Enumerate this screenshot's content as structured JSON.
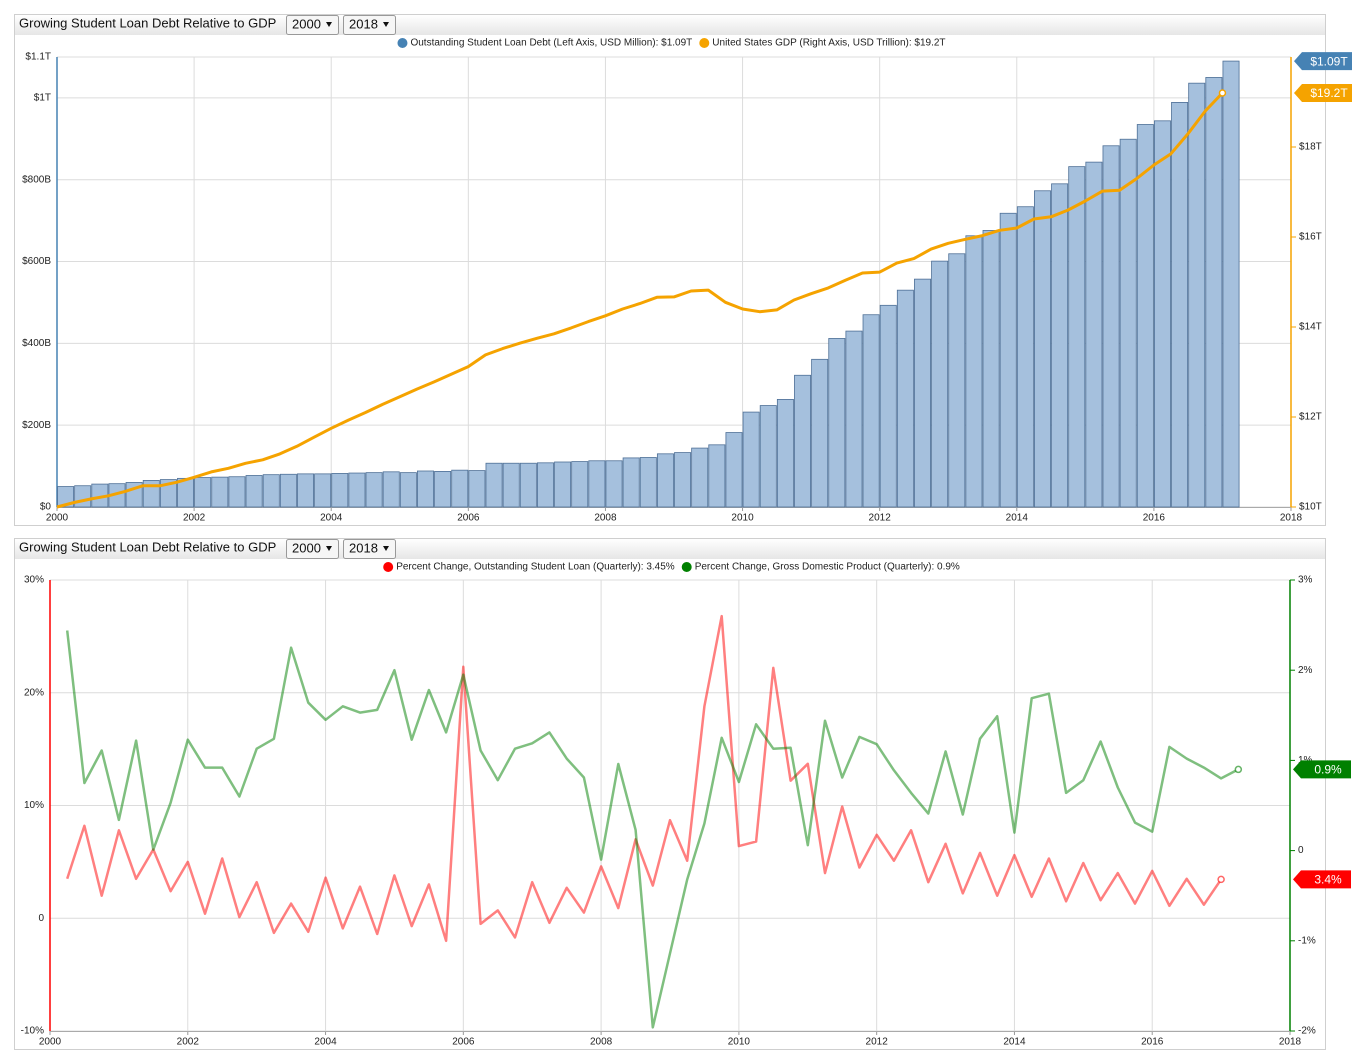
{
  "chart_data": [
    {
      "type": "combo",
      "title": "Growing Student Loan Debt Relative to GDP",
      "range_selectors": [
        "2000",
        "2018"
      ],
      "xlim": [
        2000,
        2018
      ],
      "xticks": [
        2000,
        2002,
        2004,
        2006,
        2008,
        2010,
        2012,
        2014,
        2016,
        2018
      ],
      "ylim": [
        0,
        1100
      ],
      "yticks": [
        {
          "value": 0,
          "label": "$0"
        },
        {
          "value": 200,
          "label": "$200B"
        },
        {
          "value": 400,
          "label": "$400B"
        },
        {
          "value": 600,
          "label": "$600B"
        },
        {
          "value": 800,
          "label": "$800B"
        },
        {
          "value": 1000,
          "label": "$1T"
        },
        {
          "value": 1100,
          "label": "$1.1T"
        }
      ],
      "y2lim": [
        10,
        20
      ],
      "y2ticks": [
        {
          "value": 10,
          "label": "$10T"
        },
        {
          "value": 12,
          "label": "$12T"
        },
        {
          "value": 14,
          "label": "$14T"
        },
        {
          "value": 16,
          "label": "$16T"
        },
        {
          "value": 18,
          "label": "$18T"
        }
      ],
      "grid": true,
      "x": [
        2000,
        2000.25,
        2000.5,
        2000.75,
        2001,
        2001.25,
        2001.5,
        2001.75,
        2002,
        2002.25,
        2002.5,
        2002.75,
        2003,
        2003.25,
        2003.5,
        2003.75,
        2004,
        2004.25,
        2004.5,
        2004.75,
        2005,
        2005.25,
        2005.5,
        2005.75,
        2006,
        2006.25,
        2006.5,
        2006.75,
        2007,
        2007.25,
        2007.5,
        2007.75,
        2008,
        2008.25,
        2008.5,
        2008.75,
        2009,
        2009.25,
        2009.5,
        2009.75,
        2010,
        2010.25,
        2010.5,
        2010.75,
        2011,
        2011.25,
        2011.5,
        2011.75,
        2012,
        2012.25,
        2012.5,
        2012.75,
        2013,
        2013.25,
        2013.5,
        2013.75,
        2014,
        2014.25,
        2014.5,
        2014.75,
        2015,
        2015.25,
        2015.5,
        2015.75,
        2016,
        2016.25,
        2016.5,
        2016.75,
        2017
      ],
      "series": [
        {
          "name": "Outstanding Student Loan Debt (Left Axis, USD Million): $1.09T",
          "type": "bar",
          "color": "#4682b4",
          "end_label": "$1.09T",
          "values": [
            50,
            52,
            56,
            57,
            60,
            65,
            67,
            70,
            72,
            73,
            74,
            77,
            79,
            80,
            81,
            81,
            82,
            83,
            84,
            86,
            84,
            88,
            87,
            90,
            89,
            107,
            107,
            107,
            108,
            110,
            111,
            113,
            113,
            120,
            121,
            130,
            133,
            144,
            152,
            182,
            232,
            248,
            263,
            322,
            361,
            412,
            430,
            470,
            493,
            530,
            557,
            601,
            619,
            663,
            676,
            718,
            734,
            773,
            790,
            832,
            843,
            883,
            899,
            935,
            944,
            989,
            1036,
            1050,
            1090
          ]
        },
        {
          "name": "United States GDP (Right Axis, USD Trillion): $19.2T",
          "type": "line",
          "axis": "y2",
          "color": "#f5a300",
          "end_label": "$19.2T",
          "values": [
            10.0,
            10.1,
            10.18,
            10.25,
            10.35,
            10.47,
            10.47,
            10.55,
            10.66,
            10.78,
            10.86,
            10.97,
            11.05,
            11.18,
            11.35,
            11.55,
            11.75,
            11.93,
            12.1,
            12.28,
            12.45,
            12.62,
            12.78,
            12.95,
            13.12,
            13.38,
            13.52,
            13.64,
            13.75,
            13.85,
            13.98,
            14.12,
            14.25,
            14.4,
            14.52,
            14.66,
            14.67,
            14.8,
            14.82,
            14.55,
            14.4,
            14.34,
            14.38,
            14.6,
            14.74,
            14.87,
            15.04,
            15.2,
            15.22,
            15.42,
            15.52,
            15.73,
            15.86,
            15.95,
            16.03,
            16.15,
            16.2,
            16.4,
            16.45,
            16.6,
            16.8,
            17.02,
            17.04,
            17.3,
            17.6,
            17.85,
            18.3,
            18.8,
            19.2
          ]
        }
      ]
    },
    {
      "type": "line",
      "title": "Growing Student Loan Debt Relative to GDP",
      "range_selectors": [
        "2000",
        "2018"
      ],
      "xlim": [
        2000,
        2018
      ],
      "xticks": [
        2000,
        2002,
        2004,
        2006,
        2008,
        2010,
        2012,
        2014,
        2016,
        2018
      ],
      "ylim": [
        -10,
        30
      ],
      "yticks": [
        {
          "value": -10,
          "label": "-10%"
        },
        0,
        {
          "value": 10,
          "label": "10%"
        },
        {
          "value": 20,
          "label": "20%"
        },
        {
          "value": 30,
          "label": "30%"
        }
      ],
      "y2lim": [
        -2,
        3
      ],
      "y2ticks": [
        {
          "value": -2,
          "label": "-2%"
        },
        {
          "value": -1,
          "label": "-1%"
        },
        0,
        {
          "value": 1,
          "label": "1%"
        },
        {
          "value": 2,
          "label": "2%"
        },
        {
          "value": 3,
          "label": "3%"
        }
      ],
      "grid": true,
      "series": [
        {
          "name": "Percent Change, Outstanding Student Loan (Quarterly): 3.45%",
          "color": "#ff0000",
          "end_label": "3.4%",
          "x": [
            2000.25,
            2000.5,
            2000.75,
            2001,
            2001.25,
            2001.5,
            2001.75,
            2002,
            2002.25,
            2002.5,
            2002.75,
            2003,
            2003.25,
            2003.5,
            2003.75,
            2004,
            2004.25,
            2004.5,
            2004.75,
            2005,
            2005.25,
            2005.5,
            2005.75,
            2006,
            2006.25,
            2006.5,
            2006.75,
            2007,
            2007.25,
            2007.5,
            2007.75,
            2008,
            2008.25,
            2008.5,
            2008.75,
            2009,
            2009.25,
            2009.5,
            2009.75,
            2010,
            2010.25,
            2010.5,
            2010.75,
            2011,
            2011.25,
            2011.5,
            2011.75,
            2012,
            2012.25,
            2012.5,
            2012.75,
            2013,
            2013.25,
            2013.5,
            2013.75,
            2014,
            2014.25,
            2014.5,
            2014.75,
            2015,
            2015.25,
            2015.5,
            2015.75,
            2016,
            2016.25,
            2016.5,
            2016.75,
            2017
          ],
          "values": [
            3.5,
            8.2,
            2.0,
            7.8,
            3.5,
            6.1,
            2.4,
            5.0,
            0.4,
            5.3,
            0.1,
            3.2,
            -1.3,
            1.3,
            -1.2,
            3.6,
            -0.9,
            2.8,
            -1.4,
            3.8,
            -0.7,
            3.0,
            -2.0,
            22.3,
            -0.5,
            0.7,
            -1.7,
            3.2,
            -0.4,
            2.7,
            0.5,
            4.6,
            0.9,
            7.0,
            2.9,
            8.7,
            5.1,
            18.8,
            26.8,
            6.4,
            6.8,
            22.2,
            12.2,
            13.7,
            4.0,
            9.9,
            4.5,
            7.4,
            5.1,
            7.8,
            3.2,
            6.6,
            2.2,
            5.8,
            2.0,
            5.6,
            1.9,
            5.3,
            1.5,
            4.9,
            1.6,
            4.0,
            1.3,
            4.2,
            1.1,
            3.5,
            1.2,
            3.45
          ]
        },
        {
          "name": "Percent Change, Gross Domestic Product (Quarterly): 0.9%",
          "axis": "y2",
          "color": "#008000",
          "end_label": "0.9%",
          "x": [
            2000.25,
            2000.5,
            2000.75,
            2001,
            2001.25,
            2001.5,
            2001.75,
            2002,
            2002.25,
            2002.5,
            2002.75,
            2003,
            2003.25,
            2003.5,
            2003.75,
            2004,
            2004.25,
            2004.5,
            2004.75,
            2005,
            2005.25,
            2005.5,
            2005.75,
            2006,
            2006.25,
            2006.5,
            2006.75,
            2007,
            2007.25,
            2007.5,
            2007.75,
            2008,
            2008.25,
            2008.5,
            2008.75,
            2009,
            2009.25,
            2009.5,
            2009.75,
            2010,
            2010.25,
            2010.5,
            2010.75,
            2011,
            2011.25,
            2011.5,
            2011.75,
            2012,
            2012.25,
            2012.5,
            2012.75,
            2013,
            2013.25,
            2013.5,
            2013.75,
            2014,
            2014.25,
            2014.5,
            2014.75,
            2015,
            2015.25,
            2015.5,
            2015.75,
            2016,
            2016.25,
            2016.5,
            2016.75,
            2017,
            2017.25
          ],
          "values": [
            2.44,
            0.75,
            1.11,
            0.34,
            1.22,
            0.01,
            0.53,
            1.23,
            0.92,
            0.92,
            0.6,
            1.13,
            1.24,
            2.25,
            1.64,
            1.45,
            1.6,
            1.53,
            1.56,
            2.0,
            1.23,
            1.78,
            1.31,
            1.95,
            1.11,
            0.78,
            1.13,
            1.19,
            1.31,
            1.02,
            0.81,
            -0.1,
            0.96,
            0.23,
            -1.96,
            -1.14,
            -0.32,
            0.3,
            1.25,
            0.76,
            1.4,
            1.13,
            1.14,
            0.06,
            1.44,
            0.81,
            1.26,
            1.18,
            0.89,
            0.64,
            0.41,
            1.1,
            0.4,
            1.24,
            1.49,
            0.2,
            1.69,
            1.74,
            0.64,
            0.78,
            1.21,
            0.7,
            0.31,
            0.21,
            1.15,
            1.02,
            0.92,
            0.8,
            0.9
          ]
        }
      ]
    }
  ]
}
